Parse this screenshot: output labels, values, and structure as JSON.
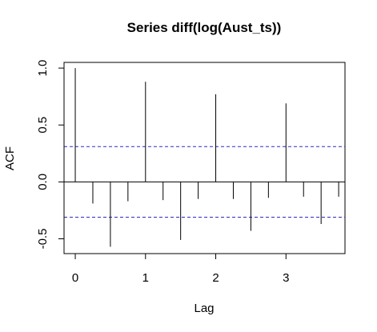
{
  "chart_data": {
    "type": "bar",
    "subtype": "acf-stem",
    "title": "Series  diff(log(Aust_ts))",
    "xlabel": "Lag",
    "ylabel": "ACF",
    "xlim": [
      -0.16,
      3.84
    ],
    "ylim": [
      -0.63,
      1.05
    ],
    "xticks": [
      0,
      1,
      2,
      3
    ],
    "xtick_labels": [
      "0",
      "1",
      "2",
      "3"
    ],
    "yticks": [
      -0.5,
      0.0,
      0.5,
      1.0
    ],
    "ytick_labels": [
      "-0.5",
      "0.0",
      "0.5",
      "1.0"
    ],
    "lags": [
      0,
      0.25,
      0.5,
      0.75,
      1.0,
      1.25,
      1.5,
      1.75,
      2.0,
      2.25,
      2.5,
      2.75,
      3.0,
      3.25,
      3.5,
      3.75
    ],
    "values": [
      1.0,
      -0.19,
      -0.57,
      -0.17,
      0.88,
      -0.16,
      -0.51,
      -0.15,
      0.77,
      -0.15,
      -0.43,
      -0.14,
      0.69,
      -0.13,
      -0.37,
      -0.13
    ],
    "zero_line": 0,
    "confidence_band": [
      0.31,
      -0.31
    ],
    "colors": {
      "bars": "#000000",
      "band": "#2b2bbf",
      "zero": "#000000"
    },
    "grid": false
  }
}
